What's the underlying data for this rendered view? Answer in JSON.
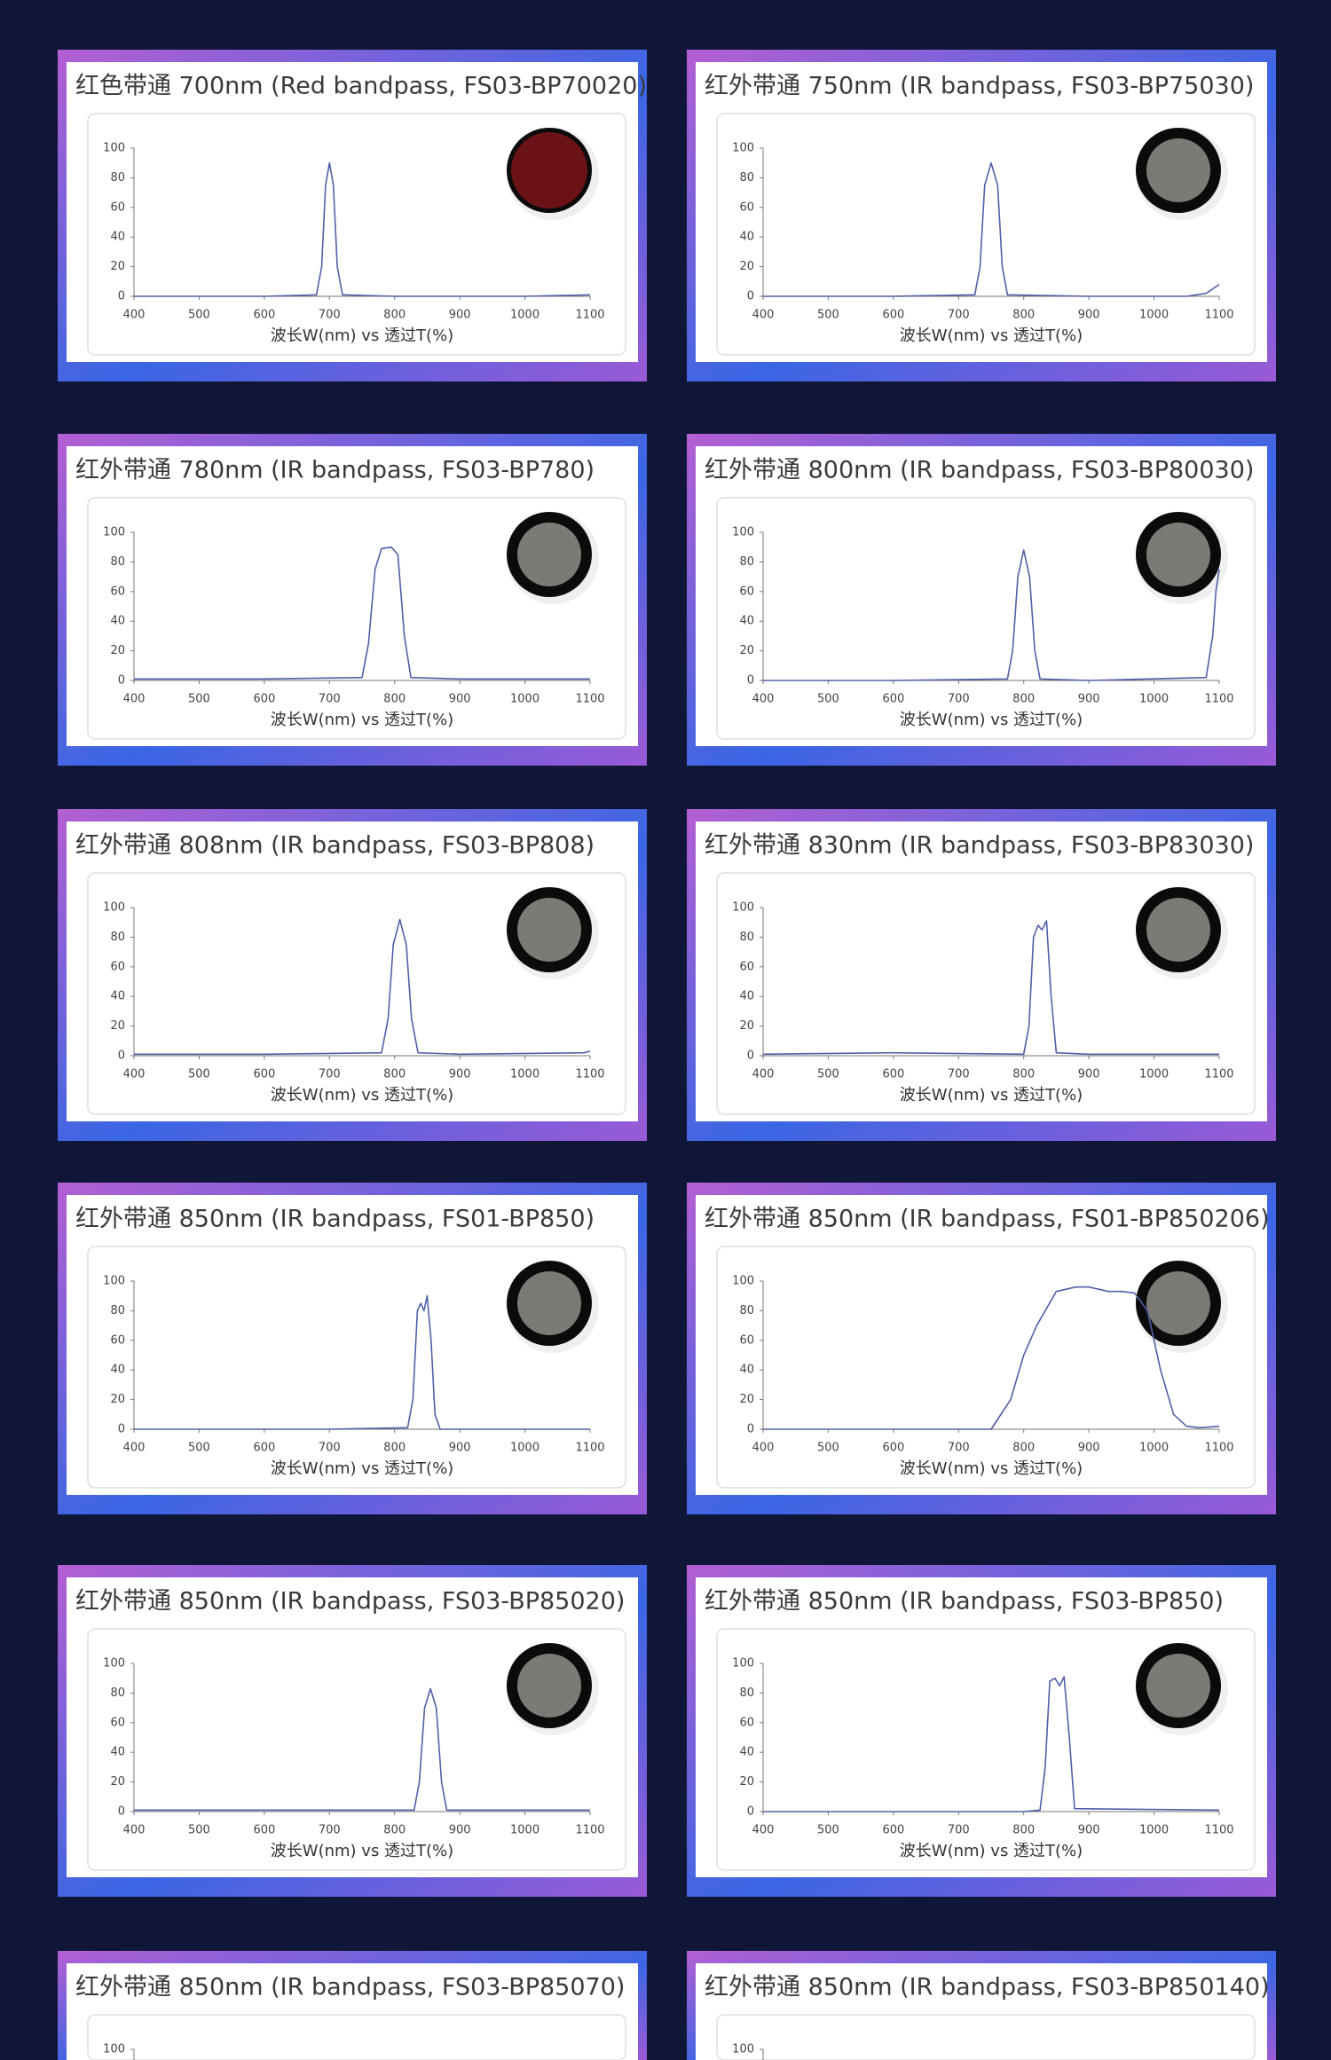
{
  "chart_data": [
    {
      "type": "line",
      "title": "红色带通 700nm (Red bandpass, FS03-BP70020)",
      "xlabel": "波长W(nm) vs 透过T(%)",
      "xlim": [
        400,
        1100
      ],
      "xticks": [
        400,
        500,
        600,
        700,
        800,
        900,
        1000,
        1100
      ],
      "ylim": [
        0,
        100
      ],
      "yticks": [
        0,
        20,
        40,
        60,
        80,
        100
      ],
      "color": "#5060a8",
      "x": [
        400,
        600,
        680,
        688,
        694,
        700,
        706,
        712,
        720,
        800,
        1000,
        1100
      ],
      "values": [
        0,
        0,
        1,
        20,
        75,
        90,
        75,
        20,
        1,
        0,
        0,
        1
      ]
    },
    {
      "type": "line",
      "title": "红外带通 750nm (IR bandpass, FS03-BP75030)",
      "xlabel": "波长W(nm) vs 透过T(%)",
      "xlim": [
        400,
        1100
      ],
      "xticks": [
        400,
        500,
        600,
        700,
        800,
        900,
        1000,
        1100
      ],
      "ylim": [
        0,
        100
      ],
      "yticks": [
        0,
        20,
        40,
        60,
        80,
        100
      ],
      "color": "#5060a8",
      "x": [
        400,
        600,
        725,
        733,
        740,
        750,
        760,
        767,
        775,
        900,
        1050,
        1080,
        1100
      ],
      "values": [
        0,
        0,
        1,
        20,
        75,
        90,
        75,
        20,
        1,
        0,
        0,
        2,
        8
      ]
    },
    {
      "type": "line",
      "title": "红外带通 780nm (IR bandpass, FS03-BP780)",
      "xlabel": "波长W(nm) vs 透过T(%)",
      "xlim": [
        400,
        1100
      ],
      "xticks": [
        400,
        500,
        600,
        700,
        800,
        900,
        1000,
        1100
      ],
      "ylim": [
        0,
        100
      ],
      "yticks": [
        0,
        20,
        40,
        60,
        80,
        100
      ],
      "color": "#5060a8",
      "x": [
        400,
        600,
        750,
        760,
        770,
        780,
        795,
        805,
        815,
        825,
        900,
        1100
      ],
      "values": [
        1,
        1,
        2,
        25,
        75,
        89,
        90,
        85,
        30,
        2,
        1,
        1
      ]
    },
    {
      "type": "line",
      "title": "红外带通 800nm (IR bandpass, FS03-BP80030)",
      "xlabel": "波长W(nm) vs 透过T(%)",
      "xlim": [
        400,
        1100
      ],
      "xticks": [
        400,
        500,
        600,
        700,
        800,
        900,
        1000,
        1100
      ],
      "ylim": [
        0,
        100
      ],
      "yticks": [
        0,
        20,
        40,
        60,
        80,
        100
      ],
      "color": "#5060a8",
      "x": [
        400,
        600,
        775,
        783,
        791,
        800,
        809,
        817,
        825,
        900,
        1080,
        1090,
        1095,
        1100
      ],
      "values": [
        0,
        0,
        1,
        20,
        70,
        88,
        70,
        20,
        1,
        0,
        2,
        30,
        60,
        75
      ]
    },
    {
      "type": "line",
      "title": "红外带通 808nm (IR bandpass, FS03-BP808)",
      "xlabel": "波长W(nm) vs 透过T(%)",
      "xlim": [
        400,
        1100
      ],
      "xticks": [
        400,
        500,
        600,
        700,
        800,
        900,
        1000,
        1100
      ],
      "ylim": [
        0,
        100
      ],
      "yticks": [
        0,
        20,
        40,
        60,
        80,
        100
      ],
      "color": "#5060a8",
      "x": [
        400,
        600,
        780,
        790,
        798,
        808,
        818,
        826,
        836,
        900,
        1090,
        1100
      ],
      "values": [
        1,
        1,
        2,
        25,
        75,
        92,
        75,
        25,
        2,
        1,
        2,
        3
      ]
    },
    {
      "type": "line",
      "title": "红外带通 830nm (IR bandpass, FS03-BP83030)",
      "xlabel": "波长W(nm) vs 透过T(%)",
      "xlim": [
        400,
        1100
      ],
      "xticks": [
        400,
        500,
        600,
        700,
        800,
        900,
        1000,
        1100
      ],
      "ylim": [
        0,
        100
      ],
      "yticks": [
        0,
        20,
        40,
        60,
        80,
        100
      ],
      "color": "#5060a8",
      "x": [
        400,
        600,
        800,
        808,
        815,
        822,
        828,
        835,
        842,
        850,
        900,
        1100
      ],
      "values": [
        1,
        2,
        1,
        20,
        80,
        88,
        85,
        91,
        40,
        2,
        1,
        1
      ]
    },
    {
      "type": "line",
      "title": "红外带通 850nm (IR bandpass, FS01-BP850)",
      "xlabel": "波长W(nm) vs 透过T(%)",
      "xlim": [
        400,
        1100
      ],
      "xticks": [
        400,
        500,
        600,
        700,
        800,
        900,
        1000,
        1100
      ],
      "ylim": [
        0,
        100
      ],
      "yticks": [
        0,
        20,
        40,
        60,
        80,
        100
      ],
      "color": "#5060a8",
      "x": [
        400,
        700,
        820,
        828,
        835,
        840,
        845,
        850,
        856,
        862,
        870,
        1100
      ],
      "values": [
        0,
        0,
        1,
        20,
        80,
        85,
        80,
        90,
        60,
        10,
        0,
        0
      ]
    },
    {
      "type": "line",
      "title": "红外带通 850nm (IR bandpass, FS01-BP850206)",
      "xlabel": "波长W(nm) vs 透过T(%)",
      "xlim": [
        400,
        1100
      ],
      "xticks": [
        400,
        500,
        600,
        700,
        800,
        900,
        1000,
        1100
      ],
      "ylim": [
        0,
        100
      ],
      "yticks": [
        0,
        20,
        40,
        60,
        80,
        100
      ],
      "color": "#5060a8",
      "x": [
        400,
        700,
        750,
        780,
        800,
        820,
        850,
        880,
        900,
        930,
        950,
        970,
        990,
        1010,
        1030,
        1050,
        1070,
        1100
      ],
      "values": [
        0,
        0,
        0,
        20,
        50,
        70,
        93,
        96,
        96,
        93,
        93,
        92,
        80,
        40,
        10,
        2,
        1,
        2
      ]
    },
    {
      "type": "line",
      "title": "红外带通 850nm (IR bandpass, FS03-BP85020)",
      "xlabel": "波长W(nm) vs 透过T(%)",
      "xlim": [
        400,
        1100
      ],
      "xticks": [
        400,
        500,
        600,
        700,
        800,
        900,
        1000,
        1100
      ],
      "ylim": [
        0,
        100
      ],
      "yticks": [
        0,
        20,
        40,
        60,
        80,
        100
      ],
      "color": "#5060a8",
      "x": [
        400,
        600,
        830,
        838,
        846,
        855,
        864,
        872,
        880,
        1000,
        1100
      ],
      "values": [
        1,
        1,
        1,
        20,
        70,
        83,
        70,
        20,
        1,
        1,
        1
      ]
    },
    {
      "type": "line",
      "title": "红外带通 850nm (IR bandpass, FS03-BP850)",
      "xlabel": "波长W(nm) vs 透过T(%)",
      "xlim": [
        400,
        1100
      ],
      "xticks": [
        400,
        500,
        600,
        700,
        800,
        900,
        1000,
        1100
      ],
      "ylim": [
        0,
        100
      ],
      "yticks": [
        0,
        20,
        40,
        60,
        80,
        100
      ],
      "color": "#5060a8",
      "x": [
        400,
        800,
        825,
        833,
        840,
        848,
        855,
        862,
        870,
        878,
        1100
      ],
      "values": [
        0,
        0,
        1,
        30,
        88,
        90,
        85,
        91,
        50,
        2,
        1
      ]
    },
    {
      "type": "line",
      "title": "红外带通 850nm (IR bandpass, FS03-BP85070)",
      "ylim": [
        0,
        100
      ],
      "yticks": [
        100
      ]
    },
    {
      "type": "line",
      "title": "红外带通 850nm (IR bandpass, FS03-BP850140)",
      "ylim": [
        0,
        100
      ],
      "yticks": [
        100
      ]
    }
  ]
}
